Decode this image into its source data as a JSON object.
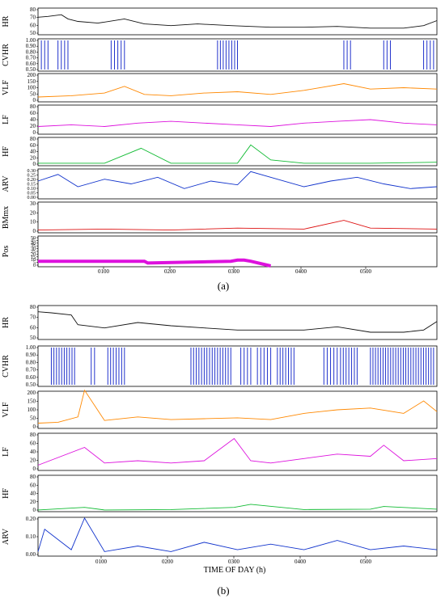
{
  "figure": {
    "panel_a_caption": "(a)",
    "panel_b_caption": "(b)",
    "x_tick_labels": [
      "0100",
      "0200",
      "0300",
      "0400",
      "0500"
    ],
    "panel_b_xlabel": "TIME OF DAY (h)"
  },
  "colors": {
    "HR": "#111111",
    "CVHR": "#2233cc",
    "CVHR_green": "#22cc22",
    "CVHR_yellow": "#dddd00",
    "VLF": "#ff8800",
    "LF": "#dd11dd",
    "HF": "#11bb33",
    "ARV": "#1133cc",
    "BMmx": "#dd1111",
    "Pos": "#dd11dd"
  },
  "chart_data": [
    {
      "panel": "(a)",
      "type": "line",
      "x_range_h": [
        0,
        6.0
      ],
      "x_ticks": [
        "0100",
        "0200",
        "0300",
        "0400",
        "0500"
      ],
      "subplots": [
        {
          "key": "HR",
          "ylabel": "HR",
          "ylim": [
            50,
            80
          ],
          "yticks": [
            "80",
            "70",
            "60",
            "50"
          ],
          "series": [
            {
              "x": [
                0,
                0.15,
                0.35,
                0.45,
                0.6,
                0.9,
                1.3,
                1.6,
                2.0,
                2.4,
                2.9,
                3.5,
                4.0,
                4.5,
                5.0,
                5.5,
                5.8,
                6.0
              ],
              "values": [
                70,
                71,
                73,
                68,
                65,
                63,
                68,
                62,
                60,
                62,
                60,
                58,
                58,
                59,
                57,
                57,
                60,
                66
              ]
            }
          ]
        },
        {
          "key": "CVHR",
          "ylabel": "CVHR",
          "ylim": [
            0.5,
            1.0
          ],
          "yticks": [
            "1.00",
            "0.90",
            "0.80",
            "0.70",
            "0.60",
            "0.50"
          ],
          "bar_intervals_h": [
            [
              0.05,
              0.15
            ],
            [
              0.3,
              0.45
            ],
            [
              1.1,
              1.3
            ],
            [
              2.7,
              3.0
            ],
            [
              4.6,
              4.7
            ],
            [
              5.2,
              5.3
            ],
            [
              5.8,
              5.95
            ]
          ]
        },
        {
          "key": "VLF",
          "ylabel": "VLF",
          "ylim": [
            0,
            200
          ],
          "yticks": [
            "200",
            "150",
            "100",
            "50",
            "0"
          ],
          "series": [
            {
              "x": [
                0,
                0.5,
                1.0,
                1.3,
                1.6,
                2.0,
                2.5,
                3.0,
                3.5,
                4.0,
                4.6,
                5.0,
                5.5,
                6.0
              ],
              "values": [
                30,
                40,
                60,
                110,
                50,
                40,
                60,
                70,
                50,
                80,
                130,
                90,
                100,
                90
              ]
            }
          ]
        },
        {
          "key": "LF",
          "ylabel": "LF",
          "ylim": [
            0,
            80
          ],
          "yticks": [
            "80",
            "60",
            "40",
            "20",
            "0"
          ],
          "series": [
            {
              "x": [
                0,
                0.5,
                1.0,
                1.5,
                2.0,
                2.5,
                3.0,
                3.5,
                4.0,
                4.5,
                5.0,
                5.5,
                6.0
              ],
              "values": [
                20,
                25,
                20,
                30,
                35,
                30,
                25,
                20,
                30,
                35,
                40,
                30,
                25
              ]
            }
          ]
        },
        {
          "key": "HF",
          "ylabel": "HF",
          "ylim": [
            0,
            80
          ],
          "yticks": [
            "80",
            "60",
            "40",
            "20",
            "0"
          ],
          "series": [
            {
              "x": [
                0,
                1.0,
                1.55,
                2.0,
                3.0,
                3.2,
                3.5,
                4.0,
                5.0,
                6.0
              ],
              "values": [
                5,
                5,
                50,
                5,
                5,
                60,
                15,
                5,
                5,
                8
              ]
            }
          ]
        },
        {
          "key": "ARV",
          "ylabel": "ARV",
          "ylim": [
            0,
            0.3
          ],
          "yticks": [
            "0.30",
            "0.25",
            "0.20",
            "0.15",
            "0.10",
            "0.05",
            "0.00"
          ],
          "series": [
            {
              "x": [
                0,
                0.3,
                0.6,
                1.0,
                1.4,
                1.8,
                2.2,
                2.6,
                3.0,
                3.2,
                3.6,
                4.0,
                4.4,
                4.8,
                5.2,
                5.6,
                6.0
              ],
              "values": [
                0.18,
                0.25,
                0.12,
                0.2,
                0.15,
                0.22,
                0.1,
                0.18,
                0.14,
                0.28,
                0.2,
                0.12,
                0.18,
                0.22,
                0.15,
                0.1,
                0.12
              ]
            }
          ]
        },
        {
          "key": "BMmx",
          "ylabel": "BMmx",
          "ylim": [
            0,
            30
          ],
          "yticks": [
            "30",
            "20",
            "10",
            "0"
          ],
          "series": [
            {
              "x": [
                0,
                1.0,
                2.0,
                3.0,
                4.0,
                4.6,
                5.0,
                6.0
              ],
              "values": [
                2,
                3,
                2,
                4,
                3,
                12,
                4,
                3
              ]
            }
          ]
        },
        {
          "key": "Pos",
          "ylabel": "Pos",
          "ylim": [
            0,
            50
          ],
          "yticks": [
            "50",
            "45",
            "40",
            "35",
            "30",
            "25",
            "20",
            "15",
            "10",
            "5",
            "0"
          ],
          "series": [
            {
              "x": [
                0,
                1.6,
                1.65,
                2.9,
                3.0,
                3.1,
                3.2,
                3.5
              ],
              "values": [
                8,
                8,
                5,
                8,
                10,
                10,
                8,
                0
              ]
            }
          ]
        }
      ]
    },
    {
      "panel": "(b)",
      "type": "line",
      "x_range_h": [
        0,
        6.0
      ],
      "x_ticks": [
        "0100",
        "0200",
        "0300",
        "0400",
        "0500"
      ],
      "xlabel": "TIME OF DAY (h)",
      "subplots": [
        {
          "key": "HR",
          "ylabel": "HR",
          "ylim": [
            50,
            80
          ],
          "yticks": [
            "80",
            "70",
            "60",
            "50"
          ],
          "series": [
            {
              "x": [
                0,
                0.2,
                0.5,
                0.6,
                1.0,
                1.5,
                2.0,
                2.5,
                3.0,
                3.5,
                4.0,
                4.5,
                5.0,
                5.5,
                5.8,
                6.0
              ],
              "values": [
                75,
                74,
                72,
                63,
                60,
                65,
                62,
                60,
                58,
                58,
                58,
                61,
                56,
                56,
                58,
                66
              ]
            }
          ]
        },
        {
          "key": "CVHR",
          "ylabel": "CVHR",
          "ylim": [
            0.5,
            1.0
          ],
          "yticks": [
            "1.00",
            "0.90",
            "0.80",
            "0.70",
            "0.60",
            "0.50"
          ],
          "bar_intervals_h": [
            [
              0.2,
              0.55
            ],
            [
              0.8,
              0.85
            ],
            [
              1.05,
              1.3
            ],
            [
              2.3,
              2.9
            ],
            [
              3.05,
              3.2
            ],
            [
              3.3,
              3.5
            ],
            [
              3.6,
              3.85
            ],
            [
              4.3,
              4.5
            ],
            [
              4.55,
              4.8
            ],
            [
              5.0,
              5.95
            ]
          ]
        },
        {
          "key": "VLF",
          "ylabel": "VLF",
          "ylim": [
            0,
            200
          ],
          "yticks": [
            "200",
            "150",
            "100",
            "50",
            "0"
          ],
          "series": [
            {
              "x": [
                0,
                0.3,
                0.6,
                0.7,
                1.0,
                1.5,
                2.0,
                2.5,
                3.0,
                3.5,
                4.0,
                4.5,
                5.0,
                5.5,
                5.8,
                6.0
              ],
              "values": [
                25,
                30,
                60,
                210,
                40,
                60,
                45,
                50,
                55,
                45,
                80,
                100,
                110,
                80,
                150,
                90
              ]
            }
          ]
        },
        {
          "key": "LF",
          "ylabel": "LF",
          "ylim": [
            0,
            80
          ],
          "yticks": [
            "80",
            "60",
            "40",
            "20",
            "0"
          ],
          "series": [
            {
              "x": [
                0,
                0.7,
                1.0,
                1.5,
                2.0,
                2.5,
                2.95,
                3.2,
                3.5,
                4.0,
                4.5,
                5.0,
                5.2,
                5.5,
                6.0
              ],
              "values": [
                10,
                50,
                15,
                20,
                15,
                20,
                70,
                20,
                15,
                25,
                35,
                30,
                55,
                20,
                25
              ]
            }
          ]
        },
        {
          "key": "HF",
          "ylabel": "HF",
          "ylim": [
            0,
            80
          ],
          "yticks": [
            "80",
            "60",
            "40",
            "20",
            "0"
          ],
          "series": [
            {
              "x": [
                0,
                0.7,
                1.0,
                2.0,
                2.95,
                3.2,
                4.0,
                5.0,
                5.2,
                6.0
              ],
              "values": [
                2,
                8,
                2,
                3,
                8,
                15,
                3,
                4,
                10,
                4
              ]
            }
          ]
        },
        {
          "key": "ARV",
          "ylabel": "ARV",
          "ylim": [
            0,
            0.2
          ],
          "yticks": [
            "0.20",
            "0.10",
            "0.00"
          ],
          "series": [
            {
              "x": [
                0,
                0.1,
                0.5,
                0.7,
                1.0,
                1.5,
                2.0,
                2.5,
                3.0,
                3.5,
                4.0,
                4.5,
                5.0,
                5.5,
                6.0
              ],
              "values": [
                0.02,
                0.14,
                0.03,
                0.2,
                0.02,
                0.05,
                0.02,
                0.07,
                0.03,
                0.06,
                0.03,
                0.08,
                0.03,
                0.05,
                0.03
              ]
            }
          ]
        }
      ]
    }
  ]
}
